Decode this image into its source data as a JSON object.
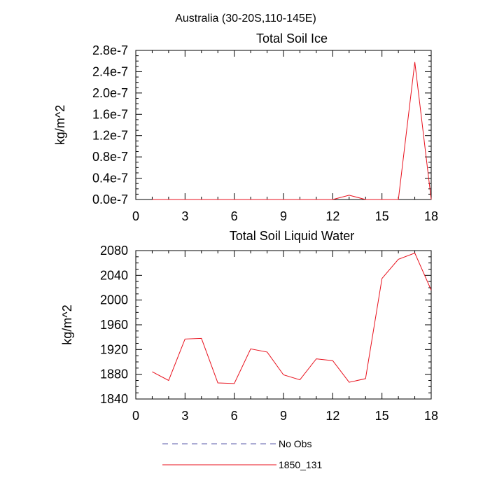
{
  "suptitle": "Australia (30-20S,110-145E)",
  "colors": {
    "model": "#e8101c",
    "obs": "#5a5aa8",
    "axis": "#000000"
  },
  "legend": {
    "entries": [
      {
        "label": "No Obs",
        "style": "dashed",
        "color": "#5a5aa8"
      },
      {
        "label": "1850_131",
        "style": "solid",
        "color": "#e8101c"
      }
    ]
  },
  "chart_data": [
    {
      "type": "line",
      "title": "Total Soil Ice",
      "xlabel": "",
      "ylabel": "kg/m^2",
      "xlim": [
        0,
        18
      ],
      "ylim": [
        0,
        2.8e-07
      ],
      "xticks": [
        0,
        3,
        6,
        9,
        12,
        15,
        18
      ],
      "xtick_labels": [
        "0",
        "3",
        "6",
        "9",
        "12",
        "15",
        "18"
      ],
      "yticks": [
        0,
        4e-08,
        8e-08,
        1.2e-07,
        1.6e-07,
        2e-07,
        2.4e-07,
        2.8e-07
      ],
      "ytick_labels": [
        "0.0e-7",
        "0.4e-7",
        "0.8e-7",
        "1.2e-7",
        "1.6e-7",
        "2.0e-7",
        "2.4e-7",
        "2.8e-7"
      ],
      "grid": false,
      "series": [
        {
          "name": "1850_131",
          "x": [
            1,
            2,
            3,
            4,
            5,
            6,
            7,
            8,
            9,
            10,
            11,
            12,
            13,
            14,
            15,
            16,
            17,
            18
          ],
          "values": [
            0,
            0,
            0,
            0,
            0,
            0,
            0,
            0,
            0,
            0,
            0,
            0,
            8e-09,
            0,
            0,
            0,
            2.58e-07,
            0
          ]
        }
      ]
    },
    {
      "type": "line",
      "title": "Total Soil Liquid Water",
      "xlabel": "",
      "ylabel": "kg/m^2",
      "xlim": [
        0,
        18
      ],
      "ylim": [
        1840,
        2080
      ],
      "xticks": [
        0,
        3,
        6,
        9,
        12,
        15,
        18
      ],
      "xtick_labels": [
        "0",
        "3",
        "6",
        "9",
        "12",
        "15",
        "18"
      ],
      "yticks": [
        1840,
        1880,
        1920,
        1960,
        2000,
        2040,
        2080
      ],
      "ytick_labels": [
        "1840",
        "1880",
        "1920",
        "1960",
        "2000",
        "2040",
        "2080"
      ],
      "grid": false,
      "series": [
        {
          "name": "1850_131",
          "x": [
            1,
            2,
            3,
            4,
            5,
            6,
            7,
            8,
            9,
            10,
            11,
            12,
            13,
            14,
            15,
            16,
            17,
            18
          ],
          "values": [
            1884,
            1870,
            1937,
            1938,
            1866,
            1865,
            1921,
            1916,
            1879,
            1871,
            1905,
            1902,
            1867,
            1873,
            2035,
            2066,
            2076,
            2016
          ]
        }
      ]
    }
  ]
}
